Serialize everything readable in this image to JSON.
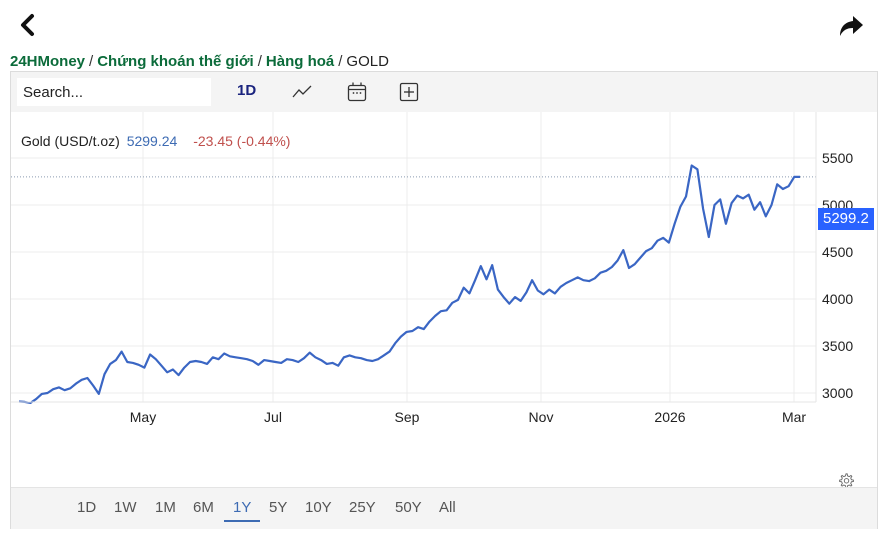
{
  "header": {
    "back_icon": "chevron-left-icon",
    "share_icon": "share-arrow-icon"
  },
  "breadcrumb": {
    "items": [
      {
        "label": "24HMoney"
      },
      {
        "label": "Chứng khoán thế giới"
      },
      {
        "label": "Hàng hoá"
      }
    ],
    "separator": "/",
    "current": "GOLD"
  },
  "toolbar": {
    "search_placeholder": "Search...",
    "interval_label": "1D",
    "chart_type_icon": "line-chart-icon",
    "calendar_icon": "calendar-icon",
    "add_icon": "plus-square-icon"
  },
  "legend": {
    "name": "Gold (USD/t.oz)",
    "price": "5299.24",
    "change": "-23.45 (-0.44%)"
  },
  "price_tag": "5299.2",
  "colors": {
    "line": "#3a66c4",
    "price_tag_bg": "#2962ff",
    "change_negative": "#c0504d",
    "price": "#3d6bb3",
    "breadcrumb_link": "#0b6b3a",
    "active_range": "#3d6bb3"
  },
  "range": {
    "buttons": [
      "1D",
      "1W",
      "1M",
      "6M",
      "1Y",
      "5Y",
      "10Y",
      "25Y",
      "50Y",
      "All"
    ],
    "active": "1Y"
  },
  "settings_icon": "gear-icon",
  "chart_data": {
    "type": "line",
    "title": "Gold (USD/t.oz)",
    "xlabel": "",
    "ylabel": "",
    "ylim": [
      2600,
      5700
    ],
    "y_ticks": [
      3000,
      3500,
      4000,
      4500,
      5000,
      5500
    ],
    "x_ticks": [
      "May",
      "Jul",
      "Sep",
      "Nov",
      "2026",
      "Mar"
    ],
    "grid": true,
    "last_value": 5299.2,
    "series": [
      {
        "name": "Gold",
        "points": [
          [
            "Mar 2025",
            2910
          ],
          [
            "",
            2905
          ],
          [
            "",
            2895
          ],
          [
            "",
            2935
          ],
          [
            "",
            2990
          ],
          [
            "",
            3000
          ],
          [
            "",
            3040
          ],
          [
            "",
            3060
          ],
          [
            "",
            3030
          ],
          [
            "",
            3050
          ],
          [
            "",
            3100
          ],
          [
            "",
            3140
          ],
          [
            "",
            3160
          ],
          [
            "",
            3080
          ],
          [
            "",
            2990
          ],
          [
            "",
            3200
          ],
          [
            "",
            3310
          ],
          [
            "",
            3350
          ],
          [
            "",
            3440
          ],
          [
            "",
            3330
          ],
          [
            "",
            3320
          ],
          [
            "",
            3300
          ],
          [
            "May 2025",
            3270
          ],
          [
            "",
            3410
          ],
          [
            "",
            3360
          ],
          [
            "",
            3290
          ],
          [
            "",
            3220
          ],
          [
            "",
            3250
          ],
          [
            "",
            3190
          ],
          [
            "",
            3270
          ],
          [
            "",
            3330
          ],
          [
            "",
            3340
          ],
          [
            "",
            3330
          ],
          [
            "",
            3310
          ],
          [
            "",
            3380
          ],
          [
            "",
            3360
          ],
          [
            "",
            3420
          ],
          [
            "",
            3390
          ],
          [
            "",
            3380
          ],
          [
            "",
            3370
          ],
          [
            "",
            3360
          ],
          [
            "",
            3340
          ],
          [
            "Jul 2025",
            3300
          ],
          [
            "",
            3350
          ],
          [
            "",
            3340
          ],
          [
            "",
            3330
          ],
          [
            "",
            3320
          ],
          [
            "",
            3360
          ],
          [
            "",
            3350
          ],
          [
            "",
            3330
          ],
          [
            "",
            3370
          ],
          [
            "",
            3430
          ],
          [
            "",
            3380
          ],
          [
            "",
            3350
          ],
          [
            "",
            3310
          ],
          [
            "",
            3320
          ],
          [
            "",
            3290
          ],
          [
            "",
            3380
          ],
          [
            "",
            3400
          ],
          [
            "",
            3380
          ],
          [
            "",
            3370
          ],
          [
            "",
            3350
          ],
          [
            "",
            3340
          ],
          [
            "",
            3360
          ],
          [
            "",
            3400
          ],
          [
            "",
            3440
          ],
          [
            "Sep 2025",
            3530
          ],
          [
            "",
            3600
          ],
          [
            "",
            3650
          ],
          [
            "",
            3660
          ],
          [
            "",
            3700
          ],
          [
            "",
            3680
          ],
          [
            "",
            3760
          ],
          [
            "",
            3820
          ],
          [
            "",
            3870
          ],
          [
            "",
            3880
          ],
          [
            "",
            3960
          ],
          [
            "",
            3990
          ],
          [
            "",
            4120
          ],
          [
            "",
            4060
          ],
          [
            "",
            4200
          ],
          [
            "",
            4350
          ],
          [
            "",
            4210
          ],
          [
            "",
            4360
          ],
          [
            "",
            4100
          ],
          [
            "",
            4020
          ],
          [
            "",
            3950
          ],
          [
            "Nov 2025",
            4020
          ],
          [
            "",
            3980
          ],
          [
            "",
            4070
          ],
          [
            "",
            4200
          ],
          [
            "",
            4090
          ],
          [
            "",
            4050
          ],
          [
            "",
            4100
          ],
          [
            "",
            4060
          ],
          [
            "",
            4130
          ],
          [
            "",
            4170
          ],
          [
            "",
            4200
          ],
          [
            "",
            4230
          ],
          [
            "",
            4200
          ],
          [
            "",
            4190
          ],
          [
            "",
            4220
          ],
          [
            "",
            4280
          ],
          [
            "",
            4300
          ],
          [
            "",
            4340
          ],
          [
            "",
            4410
          ],
          [
            "",
            4520
          ],
          [
            "Jan 2026",
            4330
          ],
          [
            "",
            4370
          ],
          [
            "",
            4440
          ],
          [
            "",
            4510
          ],
          [
            "",
            4540
          ],
          [
            "",
            4620
          ],
          [
            "",
            4650
          ],
          [
            "",
            4600
          ],
          [
            "",
            4800
          ],
          [
            "",
            4980
          ],
          [
            "",
            5090
          ],
          [
            "",
            5420
          ],
          [
            "",
            5380
          ],
          [
            "",
            4960
          ],
          [
            "",
            4660
          ],
          [
            "",
            5000
          ],
          [
            "",
            5060
          ],
          [
            "",
            4800
          ],
          [
            "",
            5020
          ],
          [
            "",
            5100
          ],
          [
            "",
            5070
          ],
          [
            "",
            5110
          ],
          [
            "",
            4950
          ],
          [
            "",
            5030
          ],
          [
            "",
            4880
          ],
          [
            "Mar 2026",
            5000
          ],
          [
            "",
            5220
          ],
          [
            "",
            5170
          ],
          [
            "",
            5200
          ],
          [
            "",
            5300
          ],
          [
            "",
            5299.2
          ]
        ]
      }
    ]
  }
}
